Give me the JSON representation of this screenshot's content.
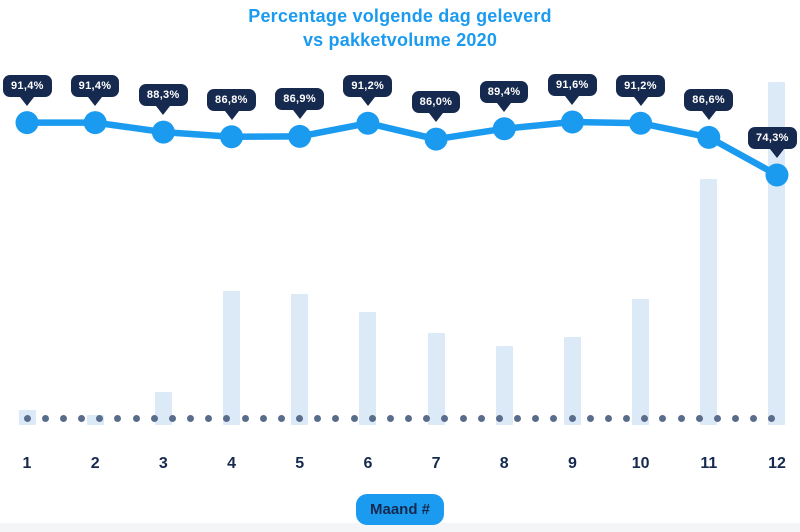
{
  "title": {
    "line1": "Percentage volgende dag geleverd",
    "line2": "vs pakketvolume 2020"
  },
  "x_axis": {
    "label_badge": "Maand #",
    "months": [
      "1",
      "2",
      "3",
      "4",
      "5",
      "6",
      "7",
      "8",
      "9",
      "10",
      "11",
      "12"
    ]
  },
  "colors": {
    "accent_azure": "#1B9BF0",
    "navy": "#16294E",
    "volume_bar": "#DCEAF8",
    "baseline_dot": "#5A6C8C",
    "title_text": "#1B9BF0",
    "tooltip_text": "#FFFFFF"
  },
  "chart_data": {
    "type": "line",
    "title": "Percentage volgende dag geleverd vs pakketvolume 2020",
    "categories": [
      "1",
      "2",
      "3",
      "4",
      "5",
      "6",
      "7",
      "8",
      "9",
      "10",
      "11",
      "12"
    ],
    "xlabel": "Maand #",
    "ylabel": "",
    "legend_position": "none",
    "y_axis_visible": false,
    "grid": false,
    "series": [
      {
        "name": "Percentage volgende dag geleverd",
        "type": "line",
        "values": [
          91.4,
          91.4,
          88.3,
          86.8,
          86.9,
          91.2,
          86.0,
          89.4,
          91.6,
          91.2,
          86.6,
          74.3
        ],
        "labels": [
          "91,4%",
          "91,4%",
          "88,3%",
          "86,8%",
          "86,9%",
          "91,2%",
          "86,0%",
          "89,4%",
          "91,6%",
          "91,2%",
          "86,6%",
          "74,3%"
        ]
      },
      {
        "name": "Pakketvolume 2020",
        "type": "bar",
        "values_relative_pct_of_max": [
          4.4,
          2.9,
          9.6,
          39.1,
          38.2,
          32.9,
          26.8,
          23.0,
          25.7,
          36.7,
          71.7,
          100
        ],
        "note_visible_axis": "geen y-as zichtbaar"
      }
    ],
    "baseline_dotted_line": true
  }
}
